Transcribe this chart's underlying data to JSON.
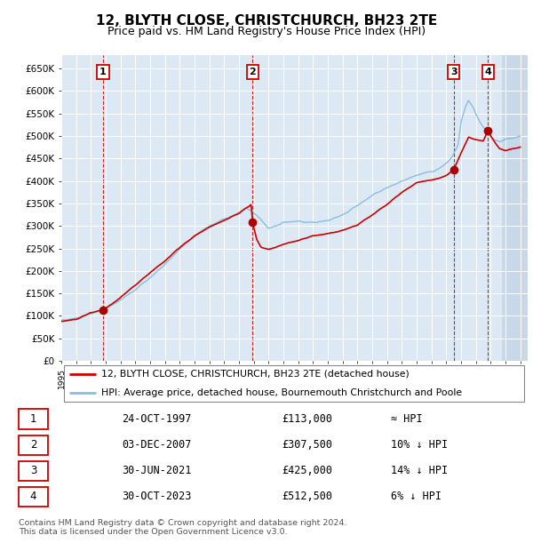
{
  "title": "12, BLYTH CLOSE, CHRISTCHURCH, BH23 2TE",
  "subtitle": "Price paid vs. HM Land Registry's House Price Index (HPI)",
  "xlim_start": 1995.0,
  "xlim_end": 2026.5,
  "ylim": [
    0,
    680000
  ],
  "yticks": [
    0,
    50000,
    100000,
    150000,
    200000,
    250000,
    300000,
    350000,
    400000,
    450000,
    500000,
    550000,
    600000,
    650000
  ],
  "ytick_labels": [
    "£0",
    "£50K",
    "£100K",
    "£150K",
    "£200K",
    "£250K",
    "£300K",
    "£350K",
    "£400K",
    "£450K",
    "£500K",
    "£550K",
    "£600K",
    "£650K"
  ],
  "background_color": "#dce9f5",
  "hpi_line_color": "#8bbedd",
  "price_line_color": "#cc0000",
  "marker_color": "#aa0000",
  "vline_color": "#cc0000",
  "grid_color": "#ffffff",
  "sale_points": [
    {
      "label": "1",
      "date_decimal": 1997.82,
      "price": 113000
    },
    {
      "label": "2",
      "date_decimal": 2007.92,
      "price": 307500
    },
    {
      "label": "3",
      "date_decimal": 2021.5,
      "price": 425000
    },
    {
      "label": "4",
      "date_decimal": 2023.83,
      "price": 512500
    }
  ],
  "legend_entries": [
    "12, BLYTH CLOSE, CHRISTCHURCH, BH23 2TE (detached house)",
    "HPI: Average price, detached house, Bournemouth Christchurch and Poole"
  ],
  "table_data": [
    {
      "num": "1",
      "date": "24-OCT-1997",
      "price": "£113,000",
      "hpi_note": "≈ HPI"
    },
    {
      "num": "2",
      "date": "03-DEC-2007",
      "price": "£307,500",
      "hpi_note": "10% ↓ HPI"
    },
    {
      "num": "3",
      "date": "30-JUN-2021",
      "price": "£425,000",
      "hpi_note": "14% ↓ HPI"
    },
    {
      "num": "4",
      "date": "30-OCT-2023",
      "price": "£512,500",
      "hpi_note": "6% ↓ HPI"
    }
  ],
  "footnote": "Contains HM Land Registry data © Crown copyright and database right 2024.\nThis data is licensed under the Open Government Licence v3.0.",
  "hatch_start": 2024.75,
  "title_fontsize": 11,
  "subtitle_fontsize": 9,
  "hpi_years": [
    1995.0,
    1996.0,
    1997.0,
    1998.0,
    1999.0,
    2000.0,
    2001.0,
    2002.0,
    2003.0,
    2004.0,
    2005.0,
    2006.0,
    2007.0,
    2007.5,
    2008.0,
    2008.5,
    2009.0,
    2009.5,
    2010.0,
    2011.0,
    2012.0,
    2013.0,
    2014.0,
    2015.0,
    2016.0,
    2017.0,
    2018.0,
    2019.0,
    2019.5,
    2020.0,
    2020.5,
    2021.0,
    2021.3,
    2021.5,
    2021.8,
    2022.0,
    2022.3,
    2022.5,
    2022.8,
    2023.0,
    2023.3,
    2023.5,
    2023.8,
    2024.0,
    2024.3,
    2024.6,
    2025.0,
    2025.5,
    2026.0
  ],
  "hpi_values": [
    90000,
    96000,
    105000,
    117000,
    135000,
    158000,
    185000,
    215000,
    248000,
    278000,
    300000,
    315000,
    330000,
    340000,
    330000,
    315000,
    295000,
    300000,
    308000,
    310000,
    308000,
    312000,
    325000,
    345000,
    368000,
    385000,
    398000,
    413000,
    418000,
    420000,
    428000,
    438000,
    448000,
    460000,
    480000,
    530000,
    565000,
    580000,
    565000,
    548000,
    530000,
    520000,
    508000,
    498000,
    490000,
    488000,
    492000,
    496000,
    500000
  ],
  "price_years": [
    1995.0,
    1996.0,
    1996.5,
    1997.0,
    1997.5,
    1997.82,
    1998.0,
    1998.5,
    1999.0,
    2000.0,
    2001.0,
    2002.0,
    2003.0,
    2004.0,
    2005.0,
    2006.0,
    2006.5,
    2007.0,
    2007.4,
    2007.7,
    2007.82,
    2007.92,
    2008.2,
    2008.5,
    2009.0,
    2009.5,
    2010.0,
    2011.0,
    2012.0,
    2013.0,
    2014.0,
    2015.0,
    2016.0,
    2017.0,
    2018.0,
    2019.0,
    2019.5,
    2020.0,
    2020.5,
    2021.0,
    2021.5,
    2022.0,
    2022.5,
    2023.0,
    2023.5,
    2023.83,
    2024.0,
    2024.3,
    2024.6,
    2025.0,
    2025.5,
    2026.0
  ],
  "price_values": [
    88000,
    92000,
    100000,
    107000,
    111000,
    113000,
    118000,
    128000,
    142000,
    168000,
    196000,
    222000,
    252000,
    278000,
    298000,
    312000,
    320000,
    328000,
    338000,
    344000,
    348000,
    307500,
    270000,
    252000,
    248000,
    252000,
    260000,
    268000,
    278000,
    283000,
    290000,
    302000,
    325000,
    348000,
    375000,
    396000,
    400000,
    402000,
    406000,
    412000,
    425000,
    462000,
    498000,
    492000,
    488000,
    512500,
    500000,
    485000,
    472000,
    468000,
    472000,
    476000
  ]
}
